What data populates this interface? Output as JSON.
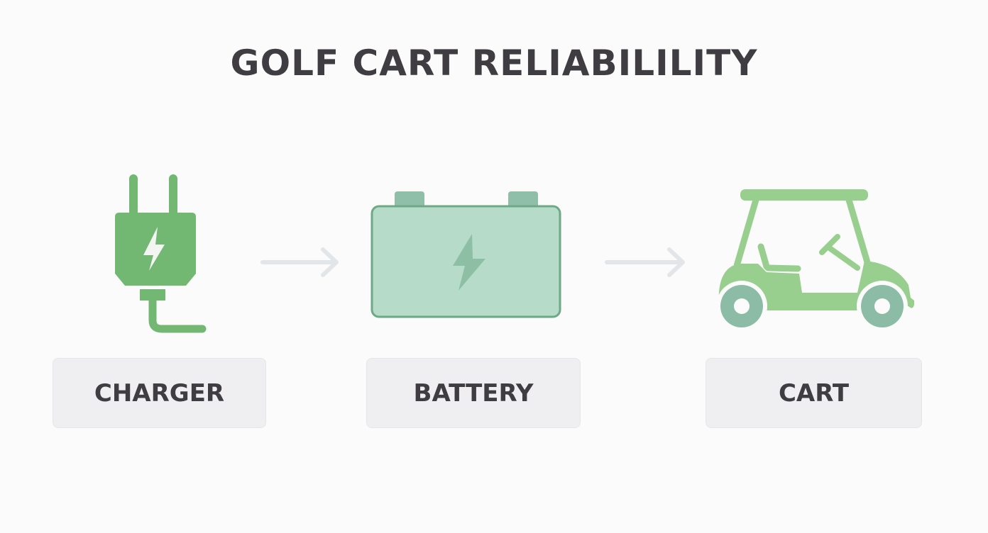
{
  "title": "GOLF CART RELIABILILITY",
  "steps": [
    {
      "label": "CHARGER",
      "icon": "plug-icon"
    },
    {
      "label": "BATTERY",
      "icon": "battery-icon"
    },
    {
      "label": "CART",
      "icon": "golf-cart-icon"
    }
  ],
  "colors": {
    "plug": "#72b872",
    "battery_fill": "#b6dcc9",
    "battery_stroke": "#6fa887",
    "cart_body": "#98cf8e",
    "wheels": "#8dbca6",
    "arrow": "#e3e6e8",
    "text": "#3f3d42"
  }
}
